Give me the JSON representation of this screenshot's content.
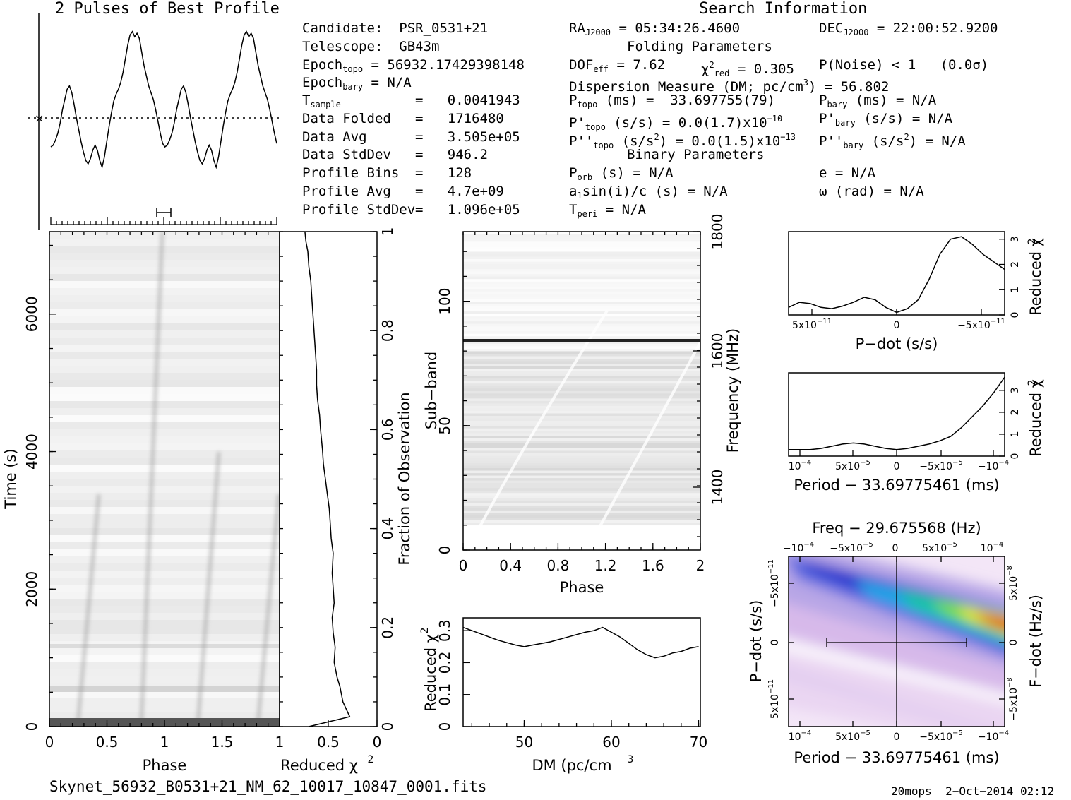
{
  "profile_panel": {
    "title": "2 Pulses of Best Profile"
  },
  "info": {
    "search_title": "Search Information",
    "candidate": "Candidate:  PSR_0531+21",
    "telescope": "Telescope:  GB43m",
    "epoch_topo_lbl": "Epoch",
    "epoch_topo_sub": "topo",
    "epoch_topo_val": " = 56932.17429398148",
    "epoch_bary_lbl": "Epoch",
    "epoch_bary_sub": "bary",
    "epoch_bary_val": " = N/A",
    "tsample_lbl": "T",
    "tsample_sub": "sample",
    "tsample_val": "=   0.0041943",
    "folded_lbl": "Data Folded",
    "folded_val": "=   1716480",
    "avg_lbl": "Data Avg",
    "avg_val": "=   3.505e+05",
    "std_lbl": "Data StdDev",
    "std_val": "=   946.2",
    "bins_lbl": "Profile Bins",
    "bins_val": "=   128",
    "pavg_lbl": "Profile Avg",
    "pavg_val": "=   4.7e+09",
    "pstd_lbl": "Profile StdDev",
    "pstd_val": "=   1.096e+05",
    "ra_lbl": "RA",
    "ra_sub": "J2000",
    "ra_val": " = 05:34:26.4600",
    "dec_lbl": "DEC",
    "dec_sub": "J2000",
    "dec_val": " = 22:00:52.9200",
    "folding_title": "Folding Parameters",
    "dof_lbl": "DOF",
    "dof_sub": "eff",
    "dof_val": " = 7.62",
    "chi_lbl": "χ",
    "chi_sup": "2",
    "chi_sub": "red",
    "chi_val": " = 0.305",
    "pnoise": "P(Noise) < 1   (0.0σ)",
    "dm_line_a": "Dispersion Measure (DM; pc/cm",
    "dm_line_sup": "3",
    "dm_line_b": ") = 56.802",
    "ptopo_lbl": "P",
    "ptopo_sub": "topo",
    "ptopo_val": " (ms) =  33.697755(79)",
    "pbary_lbl": "P",
    "pbary_sub": "bary",
    "pbary_val": " (ms) = N/A",
    "pdtopo_lbl": "P'",
    "pdtopo_sub": "topo",
    "pdtopo_val": " (s/s) = 0.0(1.7)x10",
    "pdtopo_exp": "−10",
    "pdbary_lbl": "P'",
    "pdbary_sub": "bary",
    "pdbary_val": " (s/s) = N/A",
    "pddtopo_lbl": "P''",
    "pddtopo_sub": "topo",
    "pddtopo_val": " (s/s",
    "pddtopo_sup": "2",
    "pddtopo_val2": ") = 0.0(1.5)x10",
    "pddtopo_exp": "−13",
    "pddbary_lbl": "P''",
    "pddbary_sub": "bary",
    "pddbary_val": " (s/s",
    "pddbary_sup": "2",
    "pddbary_val2": ") = N/A",
    "binary_title": "Binary Parameters",
    "porb_lbl": "P",
    "porb_sub": "orb",
    "porb_val": " (s) = N/A",
    "e_val": "e = N/A",
    "a1_lbl": "a",
    "a1_sub": "1",
    "a1_val": "sin(i)/c (s) = N/A",
    "omega_val": "ω (rad) = N/A",
    "tperi_lbl": "T",
    "tperi_sub": "peri",
    "tperi_val": " = N/A"
  },
  "footer": {
    "filename": "Skynet_56932_B0531+21_NM_62_10017_10847_0001.fits",
    "stamp": "20mops  2−Oct−2014 02:12"
  },
  "chart_data": [
    {
      "type": "line",
      "name": "profile",
      "title": "2 Pulses of Best Profile",
      "x_range": [
        0,
        2
      ],
      "peaks_phase": [
        0.77,
        1.77
      ],
      "y_values": [
        0.3,
        0.31,
        0.34,
        0.38,
        0.44,
        0.52,
        0.58,
        0.64,
        0.66,
        0.62,
        0.55,
        0.47,
        0.4,
        0.33,
        0.27,
        0.22,
        0.2,
        0.23,
        0.28,
        0.31,
        0.28,
        0.22,
        0.18,
        0.24,
        0.33,
        0.42,
        0.5,
        0.57,
        0.61,
        0.64,
        0.68,
        0.74,
        0.82,
        0.9,
        0.96,
        0.98,
        0.95,
        0.97,
        0.94,
        0.86,
        0.78,
        0.72,
        0.66,
        0.62,
        0.58,
        0.52,
        0.45,
        0.38,
        0.32,
        0.3,
        0.31,
        0.34,
        0.38,
        0.44,
        0.52,
        0.58,
        0.64,
        0.66,
        0.62,
        0.55,
        0.47,
        0.4,
        0.33,
        0.27,
        0.22,
        0.2,
        0.23,
        0.28,
        0.31,
        0.28,
        0.22,
        0.18,
        0.24,
        0.33,
        0.42,
        0.5,
        0.57,
        0.61,
        0.64,
        0.68,
        0.74,
        0.82,
        0.9,
        0.96,
        0.98,
        0.95,
        0.97,
        0.94,
        0.86,
        0.78,
        0.72,
        0.66,
        0.62,
        0.58,
        0.52,
        0.45,
        0.38,
        0.32
      ]
    },
    {
      "type": "heatmap",
      "name": "time-phase",
      "xlabel": "Phase",
      "ylabel": "Time (s)",
      "x_ticks": [
        "0",
        "0.5",
        "1",
        "1.5"
      ],
      "y_ticks": [
        "0",
        "2000",
        "4000",
        "6000"
      ],
      "x_range": [
        0,
        2
      ],
      "y_range": [
        0,
        7200
      ]
    },
    {
      "type": "line",
      "name": "time-chi2",
      "xlabel": "Reduced χ",
      "xlabel_sup": "2",
      "ylabel": "Fraction of Observation",
      "x_ticks": [
        "1",
        "0.5",
        "0"
      ],
      "y_ticks": [
        "0",
        "0.2",
        "0.4",
        "0.6",
        "0.8",
        "1"
      ],
      "x_range": [
        1,
        0
      ],
      "y_values": [
        0.0,
        0.02,
        0.05,
        0.08,
        0.1,
        0.13,
        0.16,
        0.19,
        0.22,
        0.25,
        0.28,
        0.31,
        0.35,
        0.38,
        0.41,
        0.44,
        0.47,
        0.5,
        0.53,
        0.56,
        0.6,
        0.63,
        0.66,
        0.69,
        0.72,
        0.75,
        0.78,
        0.81,
        0.84,
        0.87,
        0.9,
        0.93,
        0.96,
        0.98,
        1.0
      ],
      "x_values": [
        0.7,
        0.28,
        0.35,
        0.38,
        0.41,
        0.44,
        0.43,
        0.45,
        0.46,
        0.44,
        0.45,
        0.46,
        0.45,
        0.47,
        0.48,
        0.49,
        0.51,
        0.53,
        0.55,
        0.56,
        0.58,
        0.59,
        0.61,
        0.62,
        0.62,
        0.63,
        0.64,
        0.65,
        0.66,
        0.67,
        0.68,
        0.7,
        0.71,
        0.73,
        0.74
      ]
    },
    {
      "type": "heatmap",
      "name": "subband-phase",
      "xlabel": "Phase",
      "ylabel": "Sub−band",
      "y2label": "Frequency (MHz)",
      "x_ticks": [
        "0",
        "0.4",
        "0.8",
        "1.2",
        "1.6",
        "2"
      ],
      "y_ticks": [
        "0",
        "50",
        "100"
      ],
      "y2_ticks": [
        "1400",
        "1600",
        "1800"
      ],
      "x_range": [
        0,
        2
      ],
      "y_range": [
        0,
        128
      ]
    },
    {
      "type": "line",
      "name": "dm-chi2",
      "xlabel": "DM (pc/cm",
      "xlabel_sup": "3",
      "ylabel": "Reduced χ",
      "ylabel_sup": "2",
      "x_ticks": [
        "50",
        "60",
        "70"
      ],
      "y_ticks": [
        "0",
        "0.1",
        "0.2",
        "0.3"
      ],
      "x_range": [
        43,
        70.2
      ],
      "y_range": [
        0,
        0.34
      ],
      "x": [
        43,
        45,
        47,
        49,
        50,
        51,
        53,
        55,
        57,
        58,
        59,
        60,
        61,
        62,
        63,
        64,
        65,
        66,
        67,
        68,
        69,
        70
      ],
      "y": [
        0.31,
        0.29,
        0.27,
        0.255,
        0.25,
        0.255,
        0.265,
        0.28,
        0.295,
        0.3,
        0.31,
        0.295,
        0.28,
        0.26,
        0.24,
        0.225,
        0.215,
        0.22,
        0.23,
        0.235,
        0.245,
        0.25
      ]
    },
    {
      "type": "line",
      "name": "pdot-chi2",
      "xlabel": "P−dot (s/s)",
      "y2label": "Reduced χ",
      "y2label_sup": "2",
      "x_ticks": [
        "5x10",
        "0",
        "−5x10"
      ],
      "x_tick_exp": "−11",
      "y2_ticks": [
        "0",
        "1",
        "2",
        "3"
      ],
      "x_range": [
        1,
        -1
      ],
      "y_range": [
        0,
        3.3
      ],
      "x": [
        1,
        0.9,
        0.8,
        0.7,
        0.6,
        0.5,
        0.4,
        0.3,
        0.2,
        0.1,
        0,
        -0.1,
        -0.2,
        -0.3,
        -0.4,
        -0.5,
        -0.6,
        -0.7,
        -0.8,
        -0.9,
        -1
      ],
      "y": [
        0.3,
        0.5,
        0.45,
        0.3,
        0.25,
        0.35,
        0.5,
        0.7,
        0.6,
        0.3,
        0.1,
        0.25,
        0.6,
        1.4,
        2.4,
        3.0,
        3.1,
        2.8,
        2.4,
        2.1,
        1.8
      ]
    },
    {
      "type": "line",
      "name": "period-chi2",
      "xlabel": "Period − 33.69775461 (ms)",
      "y2label": "Reduced χ",
      "y2label_sup": "2",
      "x_ticks": [
        "10",
        "5x10",
        "0",
        "−5x10",
        "−10"
      ],
      "x_tick_exp": [
        "−4",
        "−5",
        "",
        "−5",
        "−4"
      ],
      "y2_ticks": [
        "0",
        "1",
        "2",
        "3"
      ],
      "x_range": [
        1,
        -1
      ],
      "y_range": [
        0,
        3.8
      ],
      "x": [
        1,
        0.9,
        0.8,
        0.7,
        0.6,
        0.5,
        0.4,
        0.3,
        0.2,
        0.1,
        0,
        -0.1,
        -0.2,
        -0.3,
        -0.4,
        -0.5,
        -0.6,
        -0.7,
        -0.8,
        -0.9,
        -1
      ],
      "y": [
        0.3,
        0.3,
        0.3,
        0.35,
        0.45,
        0.55,
        0.6,
        0.55,
        0.45,
        0.35,
        0.3,
        0.35,
        0.45,
        0.55,
        0.7,
        0.9,
        1.3,
        1.8,
        2.3,
        2.9,
        3.6
      ]
    },
    {
      "type": "heatmap",
      "name": "period-pdot",
      "title": "Freq − 29.675568 (Hz)",
      "xlabel": "Period − 33.69775461 (ms)",
      "ylabel": "P−dot (s/s)",
      "y2label": "F−dot (Hz/s)",
      "x_ticks": [
        "10",
        "5x10",
        "0",
        "−5x10",
        "−10"
      ],
      "x_tick_exp": [
        "−4",
        "−5",
        "",
        "−5",
        "−4"
      ],
      "top_ticks": [
        "−10",
        "−5x10",
        "0",
        "5x10",
        "10"
      ],
      "top_tick_exp": [
        "−4",
        "−5",
        "",
        "−5",
        "−4"
      ],
      "y_ticks": [
        "−5x10",
        "0",
        "5x10"
      ],
      "y_tick_exp": [
        "−11",
        "",
        "−11"
      ],
      "y2_ticks": [
        "5x10",
        "0",
        "−5x10"
      ],
      "y2_tick_exp": [
        "−8",
        "",
        "−8"
      ]
    }
  ]
}
